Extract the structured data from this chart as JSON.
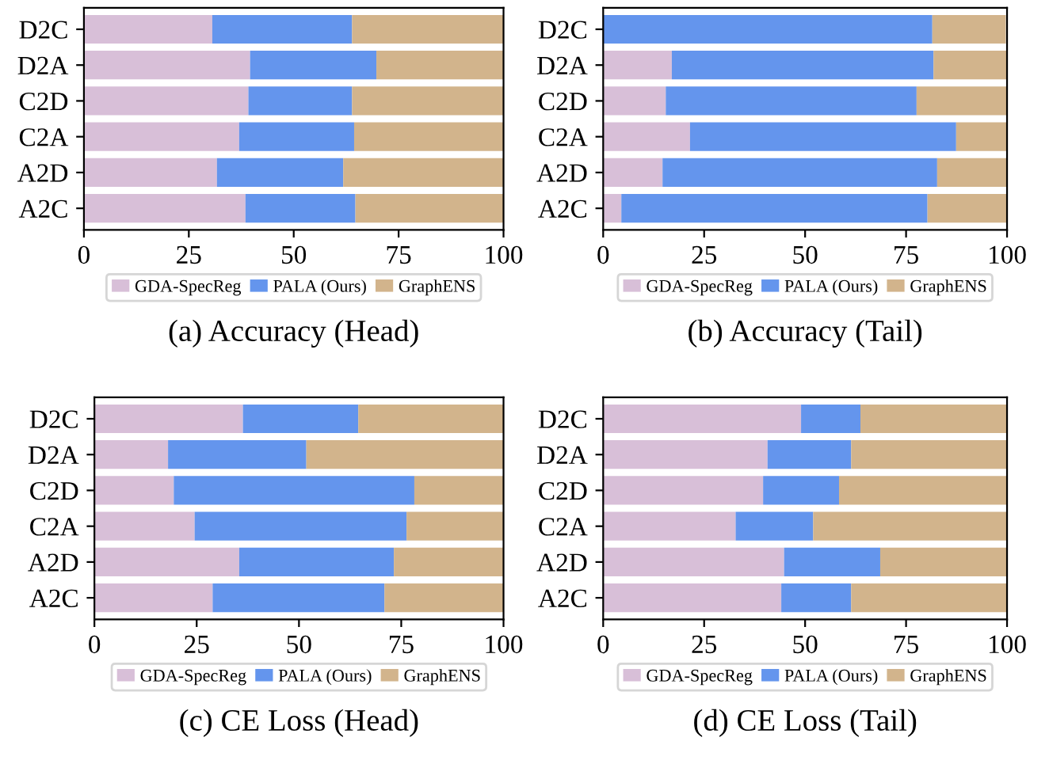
{
  "chart_data": [
    {
      "type": "bar",
      "orientation": "horizontal",
      "stacked": true,
      "title": "(a) Accuracy (Head)",
      "categories": [
        "D2C",
        "D2A",
        "C2D",
        "C2A",
        "A2D",
        "A2C"
      ],
      "xlim": [
        0,
        100
      ],
      "xticks": [
        0,
        25,
        50,
        75,
        100
      ],
      "legend": "bottom",
      "grid": false,
      "series": [
        {
          "name": "GDA-SpecReg",
          "color": "#d8bfd8",
          "values": [
            30.6,
            39.6,
            39.2,
            37,
            31.7,
            38.5
          ]
        },
        {
          "name": "PALA (Ours)",
          "color": "#6495ed",
          "values": [
            33.3,
            30.1,
            24.7,
            27.4,
            30.1,
            26.2
          ]
        },
        {
          "name": "GraphENS",
          "color": "#d2b48c",
          "values": [
            36.1,
            30.3,
            36.1,
            35.6,
            38.2,
            35.3
          ]
        }
      ]
    },
    {
      "type": "bar",
      "orientation": "horizontal",
      "stacked": true,
      "title": "(b) Accuracy (Tail)",
      "categories": [
        "D2C",
        "D2A",
        "C2D",
        "C2A",
        "A2D",
        "A2C"
      ],
      "xlim": [
        0,
        100
      ],
      "xticks": [
        0,
        25,
        50,
        75,
        100
      ],
      "legend": "bottom",
      "grid": false,
      "series": [
        {
          "name": "GDA-SpecReg",
          "color": "#d8bfd8",
          "values": [
            null,
            17,
            15.5,
            21.5,
            14.7,
            4.5
          ]
        },
        {
          "name": "PALA (Ours)",
          "color": "#6495ed",
          "values": [
            81.5,
            64.8,
            62.1,
            65.9,
            68,
            75.8
          ]
        },
        {
          "name": "GraphENS",
          "color": "#d2b48c",
          "values": [
            18.2,
            18.2,
            22.4,
            12.6,
            17.3,
            19.7
          ]
        }
      ]
    },
    {
      "type": "bar",
      "orientation": "horizontal",
      "stacked": true,
      "title": "(c) CE Loss (Head)",
      "categories": [
        "D2C",
        "D2A",
        "C2D",
        "C2A",
        "A2D",
        "A2C"
      ],
      "xlim": [
        0,
        100
      ],
      "xticks": [
        0,
        25,
        50,
        75,
        100
      ],
      "legend": "bottom",
      "grid": false,
      "series": [
        {
          "name": "GDA-SpecReg",
          "color": "#d8bfd8",
          "values": [
            36.3,
            18,
            19.4,
            24.5,
            35.4,
            28.9
          ]
        },
        {
          "name": "PALA (Ours)",
          "color": "#6495ed",
          "values": [
            28.2,
            33.8,
            58.8,
            51.8,
            37.8,
            42
          ]
        },
        {
          "name": "GraphENS",
          "color": "#d2b48c",
          "values": [
            35.5,
            48.2,
            21.8,
            23.7,
            26.8,
            29.1
          ]
        }
      ]
    },
    {
      "type": "bar",
      "orientation": "horizontal",
      "stacked": true,
      "title": "(d) CE Loss (Tail)",
      "categories": [
        "D2C",
        "D2A",
        "C2D",
        "C2A",
        "A2D",
        "A2C"
      ],
      "xlim": [
        0,
        100
      ],
      "xticks": [
        0,
        25,
        50,
        75,
        100
      ],
      "legend": "bottom",
      "grid": false,
      "series": [
        {
          "name": "GDA-SpecReg",
          "color": "#d8bfd8",
          "values": [
            49,
            40.7,
            39.6,
            32.8,
            44.8,
            44.1
          ]
        },
        {
          "name": "PALA (Ours)",
          "color": "#6495ed",
          "values": [
            14.7,
            20.7,
            18.8,
            19.2,
            23.8,
            17.3
          ]
        },
        {
          "name": "GraphENS",
          "color": "#d2b48c",
          "values": [
            36.3,
            38.6,
            41.6,
            48,
            31.4,
            38.6
          ]
        }
      ]
    }
  ]
}
